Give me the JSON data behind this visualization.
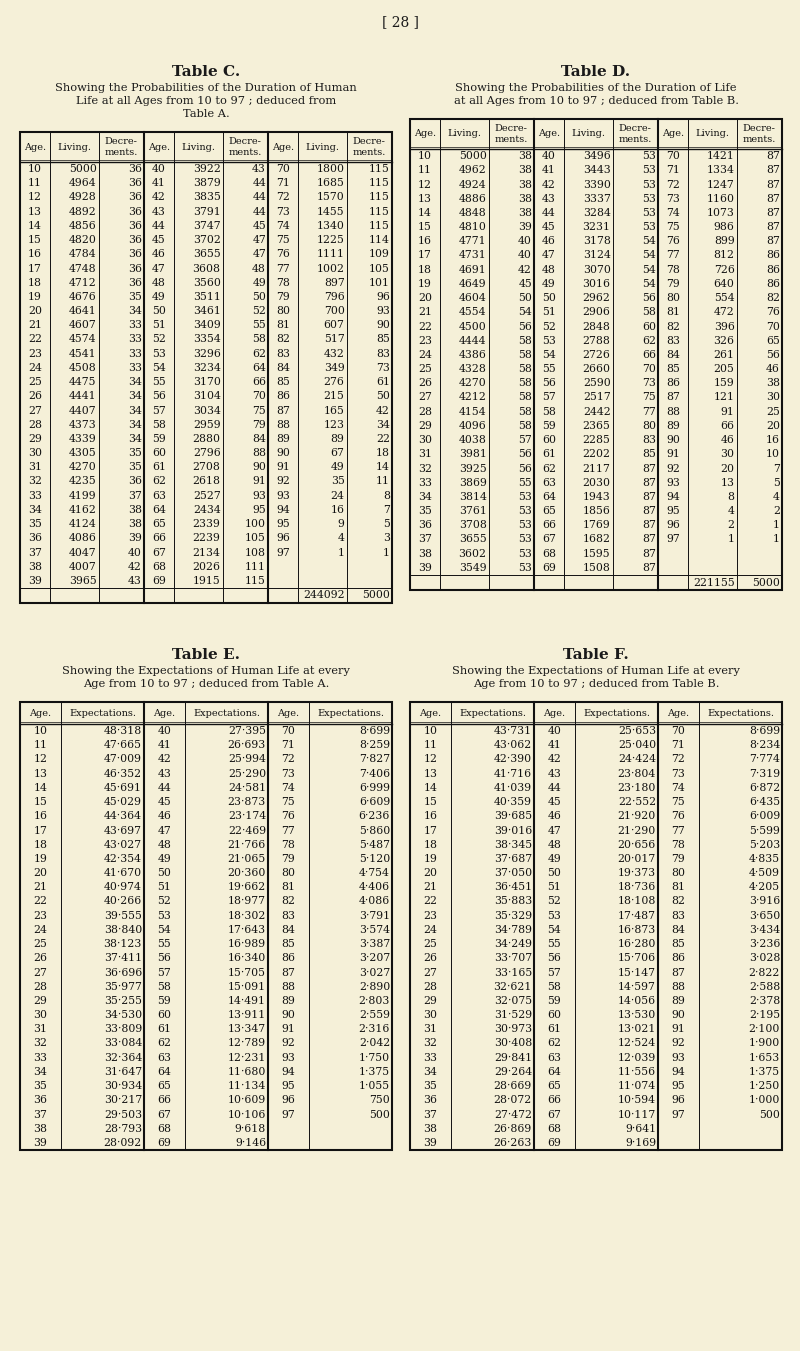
{
  "page_number": "[ 28 ]",
  "background_color": "#f5f0d8",
  "table_C": {
    "title": "Table C.",
    "subtitle": [
      "Showing the Probabilities of the Duration of Human",
      "Life at all Ages from 10 to 97 ; deduced from",
      "Table A."
    ],
    "data": [
      [
        10,
        5000,
        36,
        40,
        3922,
        43,
        70,
        1800,
        115
      ],
      [
        11,
        4964,
        36,
        41,
        3879,
        44,
        71,
        1685,
        115
      ],
      [
        12,
        4928,
        36,
        42,
        3835,
        44,
        72,
        1570,
        115
      ],
      [
        13,
        4892,
        36,
        43,
        3791,
        44,
        73,
        1455,
        115
      ],
      [
        14,
        4856,
        36,
        44,
        3747,
        45,
        74,
        1340,
        115
      ],
      [
        15,
        4820,
        36,
        45,
        3702,
        47,
        75,
        1225,
        114
      ],
      [
        16,
        4784,
        36,
        46,
        3655,
        47,
        76,
        1111,
        109
      ],
      [
        17,
        4748,
        36,
        47,
        3608,
        48,
        77,
        1002,
        105
      ],
      [
        18,
        4712,
        36,
        48,
        3560,
        49,
        78,
        897,
        101
      ],
      [
        19,
        4676,
        35,
        49,
        3511,
        50,
        79,
        796,
        96
      ],
      [
        20,
        4641,
        34,
        50,
        3461,
        52,
        80,
        700,
        93
      ],
      [
        21,
        4607,
        33,
        51,
        3409,
        55,
        81,
        607,
        90
      ],
      [
        22,
        4574,
        33,
        52,
        3354,
        58,
        82,
        517,
        85
      ],
      [
        23,
        4541,
        33,
        53,
        3296,
        62,
        83,
        432,
        83
      ],
      [
        24,
        4508,
        33,
        54,
        3234,
        64,
        84,
        349,
        73
      ],
      [
        25,
        4475,
        34,
        55,
        3170,
        66,
        85,
        276,
        61
      ],
      [
        26,
        4441,
        34,
        56,
        3104,
        70,
        86,
        215,
        50
      ],
      [
        27,
        4407,
        34,
        57,
        3034,
        75,
        87,
        165,
        42
      ],
      [
        28,
        4373,
        34,
        58,
        2959,
        79,
        88,
        123,
        34
      ],
      [
        29,
        4339,
        34,
        59,
        2880,
        84,
        89,
        89,
        22
      ],
      [
        30,
        4305,
        35,
        60,
        2796,
        88,
        90,
        67,
        18
      ],
      [
        31,
        4270,
        35,
        61,
        2708,
        90,
        91,
        49,
        14
      ],
      [
        32,
        4235,
        36,
        62,
        2618,
        91,
        92,
        35,
        11
      ],
      [
        33,
        4199,
        37,
        63,
        2527,
        93,
        93,
        24,
        8
      ],
      [
        34,
        4162,
        38,
        64,
        2434,
        95,
        94,
        16,
        7
      ],
      [
        35,
        4124,
        38,
        65,
        2339,
        100,
        95,
        9,
        5
      ],
      [
        36,
        4086,
        39,
        66,
        2239,
        105,
        96,
        4,
        3
      ],
      [
        37,
        4047,
        40,
        67,
        2134,
        108,
        97,
        1,
        1
      ],
      [
        38,
        4007,
        42,
        68,
        2026,
        111,
        null,
        null,
        null
      ],
      [
        39,
        3965,
        43,
        69,
        1915,
        115,
        null,
        null,
        null
      ]
    ],
    "footer": [
      "244092",
      "5000"
    ]
  },
  "table_D": {
    "title": "Table D.",
    "subtitle": [
      "Showing the Probabilities of the Duration of Life",
      "at all Ages from 10 to 97 ; deduced from Table B."
    ],
    "data": [
      [
        10,
        5000,
        38,
        40,
        3496,
        53,
        70,
        1421,
        87
      ],
      [
        11,
        4962,
        38,
        41,
        3443,
        53,
        71,
        1334,
        87
      ],
      [
        12,
        4924,
        38,
        42,
        3390,
        53,
        72,
        1247,
        87
      ],
      [
        13,
        4886,
        38,
        43,
        3337,
        53,
        73,
        1160,
        87
      ],
      [
        14,
        4848,
        38,
        44,
        3284,
        53,
        74,
        1073,
        87
      ],
      [
        15,
        4810,
        39,
        45,
        3231,
        53,
        75,
        986,
        87
      ],
      [
        16,
        4771,
        40,
        46,
        3178,
        54,
        76,
        899,
        87
      ],
      [
        17,
        4731,
        40,
        47,
        3124,
        54,
        77,
        812,
        86
      ],
      [
        18,
        4691,
        42,
        48,
        3070,
        54,
        78,
        726,
        86
      ],
      [
        19,
        4649,
        45,
        49,
        3016,
        54,
        79,
        640,
        86
      ],
      [
        20,
        4604,
        50,
        50,
        2962,
        56,
        80,
        554,
        82
      ],
      [
        21,
        4554,
        54,
        51,
        2906,
        58,
        81,
        472,
        76
      ],
      [
        22,
        4500,
        56,
        52,
        2848,
        60,
        82,
        396,
        70
      ],
      [
        23,
        4444,
        58,
        53,
        2788,
        62,
        83,
        326,
        65
      ],
      [
        24,
        4386,
        58,
        54,
        2726,
        66,
        84,
        261,
        56
      ],
      [
        25,
        4328,
        58,
        55,
        2660,
        70,
        85,
        205,
        46
      ],
      [
        26,
        4270,
        58,
        56,
        2590,
        73,
        86,
        159,
        38
      ],
      [
        27,
        4212,
        58,
        57,
        2517,
        75,
        87,
        121,
        30
      ],
      [
        28,
        4154,
        58,
        58,
        2442,
        77,
        88,
        91,
        25
      ],
      [
        29,
        4096,
        58,
        59,
        2365,
        80,
        89,
        66,
        20
      ],
      [
        30,
        4038,
        57,
        60,
        2285,
        83,
        90,
        46,
        16
      ],
      [
        31,
        3981,
        56,
        61,
        2202,
        85,
        91,
        30,
        10
      ],
      [
        32,
        3925,
        56,
        62,
        2117,
        87,
        92,
        20,
        7
      ],
      [
        33,
        3869,
        55,
        63,
        2030,
        87,
        93,
        13,
        5
      ],
      [
        34,
        3814,
        53,
        64,
        1943,
        87,
        94,
        8,
        4
      ],
      [
        35,
        3761,
        53,
        65,
        1856,
        87,
        95,
        4,
        2
      ],
      [
        36,
        3708,
        53,
        66,
        1769,
        87,
        96,
        2,
        1
      ],
      [
        37,
        3655,
        53,
        67,
        1682,
        87,
        97,
        1,
        1
      ],
      [
        38,
        3602,
        53,
        68,
        1595,
        87,
        null,
        null,
        null
      ],
      [
        39,
        3549,
        53,
        69,
        1508,
        87,
        null,
        null,
        null
      ]
    ],
    "footer": [
      "221155",
      "5000"
    ]
  },
  "table_E": {
    "title": "Table E.",
    "subtitle": [
      "Showing the Expectations of Human Life at every",
      "Age from 10 to 97 ; deduced from Table A."
    ],
    "data": [
      [
        10,
        "48·318",
        40,
        "27·395",
        70,
        "8·699"
      ],
      [
        11,
        "47·665",
        41,
        "26·693",
        71,
        "8·259"
      ],
      [
        12,
        "47·009",
        42,
        "25·994",
        72,
        "7·827"
      ],
      [
        13,
        "46·352",
        43,
        "25·290",
        73,
        "7·406"
      ],
      [
        14,
        "45·691",
        44,
        "24·581",
        74,
        "6·999"
      ],
      [
        15,
        "45·029",
        45,
        "23·873",
        75,
        "6·609"
      ],
      [
        16,
        "44·364",
        46,
        "23·174",
        76,
        "6·236"
      ],
      [
        17,
        "43·697",
        47,
        "22·469",
        77,
        "5·860"
      ],
      [
        18,
        "43·027",
        48,
        "21·766",
        78,
        "5·487"
      ],
      [
        19,
        "42·354",
        49,
        "21·065",
        79,
        "5·120"
      ],
      [
        20,
        "41·670",
        50,
        "20·360",
        80,
        "4·754"
      ],
      [
        21,
        "40·974",
        51,
        "19·662",
        81,
        "4·406"
      ],
      [
        22,
        "40·266",
        52,
        "18·977",
        82,
        "4·086"
      ],
      [
        23,
        "39·555",
        53,
        "18·302",
        83,
        "3·791"
      ],
      [
        24,
        "38·840",
        54,
        "17·643",
        84,
        "3·574"
      ],
      [
        25,
        "38·123",
        55,
        "16·989",
        85,
        "3·387"
      ],
      [
        26,
        "37·411",
        56,
        "16·340",
        86,
        "3·207"
      ],
      [
        27,
        "36·696",
        57,
        "15·705",
        87,
        "3·027"
      ],
      [
        28,
        "35·977",
        58,
        "15·091",
        88,
        "2·890"
      ],
      [
        29,
        "35·255",
        59,
        "14·491",
        89,
        "2·803"
      ],
      [
        30,
        "34·530",
        60,
        "13·911",
        90,
        "2·559"
      ],
      [
        31,
        "33·809",
        61,
        "13·347",
        91,
        "2·316"
      ],
      [
        32,
        "33·084",
        62,
        "12·789",
        92,
        "2·042"
      ],
      [
        33,
        "32·364",
        63,
        "12·231",
        93,
        "1·750"
      ],
      [
        34,
        "31·647",
        64,
        "11·680",
        94,
        "1·375"
      ],
      [
        35,
        "30·934",
        65,
        "11·134",
        95,
        "1·055"
      ],
      [
        36,
        "30·217",
        66,
        "10·609",
        96,
        "750"
      ],
      [
        37,
        "29·503",
        67,
        "10·106",
        97,
        "500"
      ],
      [
        38,
        "28·793",
        68,
        "9·618",
        null,
        null
      ],
      [
        39,
        "28·092",
        69,
        "9·146",
        null,
        null
      ]
    ]
  },
  "table_F": {
    "title": "Table F.",
    "subtitle": [
      "Showing the Expectations of Human Life at every",
      "Age from 10 to 97 ; deduced from Table B."
    ],
    "data": [
      [
        10,
        "43·731",
        40,
        "25·653",
        70,
        "8·699"
      ],
      [
        11,
        "43·062",
        41,
        "25·040",
        71,
        "8·234"
      ],
      [
        12,
        "42·390",
        42,
        "24·424",
        72,
        "7·774"
      ],
      [
        13,
        "41·716",
        43,
        "23·804",
        73,
        "7·319"
      ],
      [
        14,
        "41·039",
        44,
        "23·180",
        74,
        "6·872"
      ],
      [
        15,
        "40·359",
        45,
        "22·552",
        75,
        "6·435"
      ],
      [
        16,
        "39·685",
        46,
        "21·920",
        76,
        "6·009"
      ],
      [
        17,
        "39·016",
        47,
        "21·290",
        77,
        "5·599"
      ],
      [
        18,
        "38·345",
        48,
        "20·656",
        78,
        "5·203"
      ],
      [
        19,
        "37·687",
        49,
        "20·017",
        79,
        "4·835"
      ],
      [
        20,
        "37·050",
        50,
        "19·373",
        80,
        "4·509"
      ],
      [
        21,
        "36·451",
        51,
        "18·736",
        81,
        "4·205"
      ],
      [
        22,
        "35·883",
        52,
        "18·108",
        82,
        "3·916"
      ],
      [
        23,
        "35·329",
        53,
        "17·487",
        83,
        "3·650"
      ],
      [
        24,
        "34·789",
        54,
        "16·873",
        84,
        "3·434"
      ],
      [
        25,
        "34·249",
        55,
        "16·280",
        85,
        "3·236"
      ],
      [
        26,
        "33·707",
        56,
        "15·706",
        86,
        "3·028"
      ],
      [
        27,
        "33·165",
        57,
        "15·147",
        87,
        "2·822"
      ],
      [
        28,
        "32·621",
        58,
        "14·597",
        88,
        "2·588"
      ],
      [
        29,
        "32·075",
        59,
        "14·056",
        89,
        "2·378"
      ],
      [
        30,
        "31·529",
        60,
        "13·530",
        90,
        "2·195"
      ],
      [
        31,
        "30·973",
        61,
        "13·021",
        91,
        "2·100"
      ],
      [
        32,
        "30·408",
        62,
        "12·524",
        92,
        "1·900"
      ],
      [
        33,
        "29·841",
        63,
        "12·039",
        93,
        "1·653"
      ],
      [
        34,
        "29·264",
        64,
        "11·556",
        94,
        "1·375"
      ],
      [
        35,
        "28·669",
        65,
        "11·074",
        95,
        "1·250"
      ],
      [
        36,
        "28·072",
        66,
        "10·594",
        96,
        "1·000"
      ],
      [
        37,
        "27·472",
        67,
        "10·117",
        97,
        "500"
      ],
      [
        38,
        "26·869",
        68,
        "9·641",
        null,
        null
      ],
      [
        39,
        "26·263",
        69,
        "9·169",
        null,
        null
      ]
    ]
  }
}
